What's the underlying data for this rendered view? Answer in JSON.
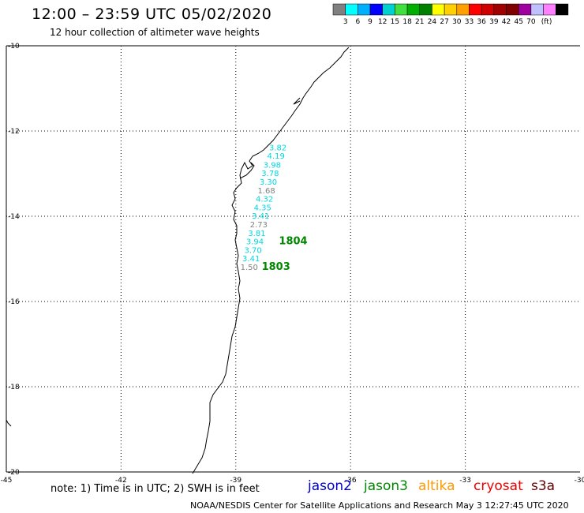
{
  "header": {
    "title": "12:00 – 23:59 UTC 05/02/2020",
    "subtitle": "12 hour collection of altimeter wave heights"
  },
  "legend": {
    "colors": [
      "#808080",
      "#00ffff",
      "#00b0ff",
      "#0000ff",
      "#00d0d0",
      "#40e040",
      "#00b000",
      "#008000",
      "#ffff00",
      "#ffd000",
      "#ffa000",
      "#ff0000",
      "#d00000",
      "#a00000",
      "#800000",
      "#a000a0",
      "#c0c0ff",
      "#ff80ff",
      "#000000"
    ],
    "labels": [
      "3",
      "6",
      "9",
      "12",
      "15",
      "18",
      "21",
      "24",
      "27",
      "30",
      "33",
      "36",
      "39",
      "42",
      "45",
      "70"
    ],
    "unit": "(ft)"
  },
  "chart_data": {
    "type": "scatter",
    "lon_range": [
      -45,
      -30
    ],
    "lat_range": [
      -20,
      -10
    ],
    "x_ticks": [
      "-45",
      "-42",
      "-39",
      "-36",
      "-33",
      "-30"
    ],
    "y_ticks": [
      "-10",
      "-12",
      "-14",
      "-16",
      "-18",
      "-20"
    ],
    "grid": true,
    "observations": [
      {
        "lon": -37.9,
        "lat": -12.45,
        "value": "3.82",
        "color": "#00d8e0"
      },
      {
        "lon": -37.95,
        "lat": -12.65,
        "value": "4.19",
        "color": "#00d8e0"
      },
      {
        "lon": -38.05,
        "lat": -12.86,
        "value": "3.98",
        "color": "#00d8e0"
      },
      {
        "lon": -38.1,
        "lat": -13.06,
        "value": "3.78",
        "color": "#00d8e0"
      },
      {
        "lon": -38.15,
        "lat": -13.26,
        "value": "3.30",
        "color": "#00d8e0"
      },
      {
        "lon": -38.2,
        "lat": -13.46,
        "value": "1.68",
        "color": "#808080"
      },
      {
        "lon": -38.25,
        "lat": -13.66,
        "value": "4.32",
        "color": "#00d8e0"
      },
      {
        "lon": -38.3,
        "lat": -13.86,
        "value": "4.35",
        "color": "#00d8e0"
      },
      {
        "lon": -38.35,
        "lat": -14.06,
        "value": "3.41",
        "color": "#00d8e0"
      },
      {
        "lon": -38.4,
        "lat": -14.26,
        "value": "2.73",
        "color": "#808080"
      },
      {
        "lon": -38.45,
        "lat": -14.46,
        "value": "3.81",
        "color": "#00d8e0"
      },
      {
        "lon": -38.5,
        "lat": -14.66,
        "value": "3.94",
        "color": "#00d8e0"
      },
      {
        "lon": -38.55,
        "lat": -14.86,
        "value": "3.70",
        "color": "#00d8e0"
      },
      {
        "lon": -38.6,
        "lat": -15.06,
        "value": "3.41",
        "color": "#00d8e0"
      },
      {
        "lon": -38.65,
        "lat": -15.26,
        "value": "1.50",
        "color": "#808080"
      }
    ],
    "labels_bold": [
      {
        "lon": -37.5,
        "lat": -14.66,
        "text": "1804"
      },
      {
        "lon": -37.95,
        "lat": -15.26,
        "text": "1803"
      }
    ]
  },
  "footer": {
    "note": "note:  1) Time is in UTC;  2) SWH is in feet",
    "satellites": [
      {
        "name": "jason2",
        "color": "#0000cc"
      },
      {
        "name": "jason3",
        "color": "#008800"
      },
      {
        "name": "altika",
        "color": "#ff9900"
      },
      {
        "name": "cryosat",
        "color": "#ee0000"
      },
      {
        "name": "s3a",
        "color": "#660000"
      }
    ],
    "credit": "NOAA/NESDIS Center for Satellite Applications and Research    May  3 12:27:45 UTC 2020"
  }
}
